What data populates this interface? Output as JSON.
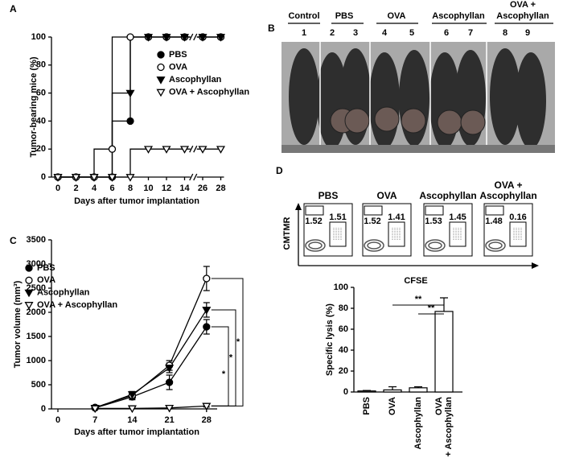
{
  "panel_labels": [
    "A",
    "B",
    "C",
    "D"
  ],
  "chart_data": [
    {
      "type": "step",
      "y_label": "Tumor-bearing mice (%)",
      "x_label": "Days after tumor implantation",
      "categories": [
        0,
        2,
        4,
        6,
        8,
        10,
        12,
        14,
        26,
        28
      ],
      "ylim": [
        0,
        100
      ],
      "yticks": [
        0,
        20,
        40,
        60,
        80,
        100
      ],
      "series": [
        {
          "name": "PBS",
          "color": "#000000",
          "fill": "#000000",
          "marker": "circle",
          "values": [
            0,
            0,
            0,
            0,
            40,
            100,
            100,
            100,
            100,
            100
          ]
        },
        {
          "name": "OVA",
          "color": "#000000",
          "fill": "#ffffff",
          "marker": "circle",
          "values": [
            0,
            0,
            0,
            20,
            100,
            100,
            100,
            100,
            100,
            100
          ]
        },
        {
          "name": "Ascophyllan",
          "color": "#000000",
          "fill": "#000000",
          "marker": "triangle-down",
          "values": [
            0,
            0,
            0,
            0,
            60,
            100,
            100,
            100,
            100,
            100
          ]
        },
        {
          "name": "OVA + Ascophyllan",
          "color": "#000000",
          "fill": "#ffffff",
          "marker": "triangle-down",
          "values": [
            0,
            0,
            0,
            0,
            0,
            20,
            20,
            20,
            20,
            20
          ]
        }
      ]
    },
    {
      "type": "line",
      "y_label": "Tumor volume (mm³)",
      "x_label": "Days after tumor implantation",
      "x": [
        7,
        14,
        21,
        28
      ],
      "xlim": [
        0,
        30
      ],
      "xticks": [
        0,
        7,
        14,
        21,
        28
      ],
      "ylim": [
        0,
        3500
      ],
      "yticks": [
        0,
        500,
        1000,
        1500,
        2000,
        2500,
        3000,
        3500
      ],
      "series": [
        {
          "name": "PBS",
          "color": "#000000",
          "fill": "#000000",
          "marker": "circle",
          "values": [
            20,
            250,
            550,
            1700
          ],
          "errors": [
            10,
            60,
            150,
            150
          ]
        },
        {
          "name": "OVA",
          "color": "#000000",
          "fill": "#ffffff",
          "marker": "circle",
          "values": [
            30,
            280,
            900,
            2700
          ],
          "errors": [
            20,
            60,
            100,
            250
          ]
        },
        {
          "name": "Ascophyllan",
          "color": "#000000",
          "fill": "#000000",
          "marker": "triangle-down",
          "values": [
            20,
            300,
            850,
            2050
          ],
          "errors": [
            15,
            60,
            100,
            150
          ]
        },
        {
          "name": "OVA + Ascophyllan",
          "color": "#000000",
          "fill": "#ffffff",
          "marker": "triangle-down",
          "values": [
            10,
            10,
            20,
            60
          ],
          "errors": [
            5,
            5,
            10,
            20
          ]
        }
      ],
      "annotations": [
        "*",
        "*",
        "*"
      ]
    },
    {
      "type": "bar",
      "y_label": "Specific lysis (%)",
      "categories": [
        "PBS",
        "OVA",
        "Ascophyllan",
        [
          "OVA",
          "+ Ascophyllan"
        ]
      ],
      "values": [
        1,
        2,
        4,
        77
      ],
      "errors": [
        0.5,
        3,
        1,
        13
      ],
      "color": "#ffffff",
      "edge_color": "#000000",
      "ylim": [
        0,
        100
      ],
      "yticks": [
        0,
        20,
        40,
        60,
        80,
        100
      ],
      "annotations": [
        "**",
        "**"
      ]
    }
  ],
  "photo": {
    "groups": [
      {
        "name": [
          "Control"
        ],
        "numbers": [
          1
        ]
      },
      {
        "name": [
          "PBS"
        ],
        "numbers": [
          2,
          3
        ]
      },
      {
        "name": [
          "OVA"
        ],
        "numbers": [
          4,
          5
        ]
      },
      {
        "name": [
          "Ascophyllan"
        ],
        "numbers": [
          6,
          7
        ]
      },
      {
        "name": [
          "OVA +",
          "Ascophyllan"
        ],
        "numbers": [
          8,
          9
        ]
      }
    ]
  },
  "flow": {
    "y_label": "CMTMR",
    "x_label": "CFSE",
    "plots": [
      {
        "title": [
          "PBS"
        ],
        "left": 1.52,
        "right": 1.51
      },
      {
        "title": [
          "OVA"
        ],
        "left": 1.52,
        "right": 1.41
      },
      {
        "title": [
          "Ascophyllan"
        ],
        "left": 1.53,
        "right": 1.45
      },
      {
        "title": [
          "OVA +",
          "Ascophyllan"
        ],
        "left": 1.48,
        "right": 0.16
      }
    ]
  }
}
